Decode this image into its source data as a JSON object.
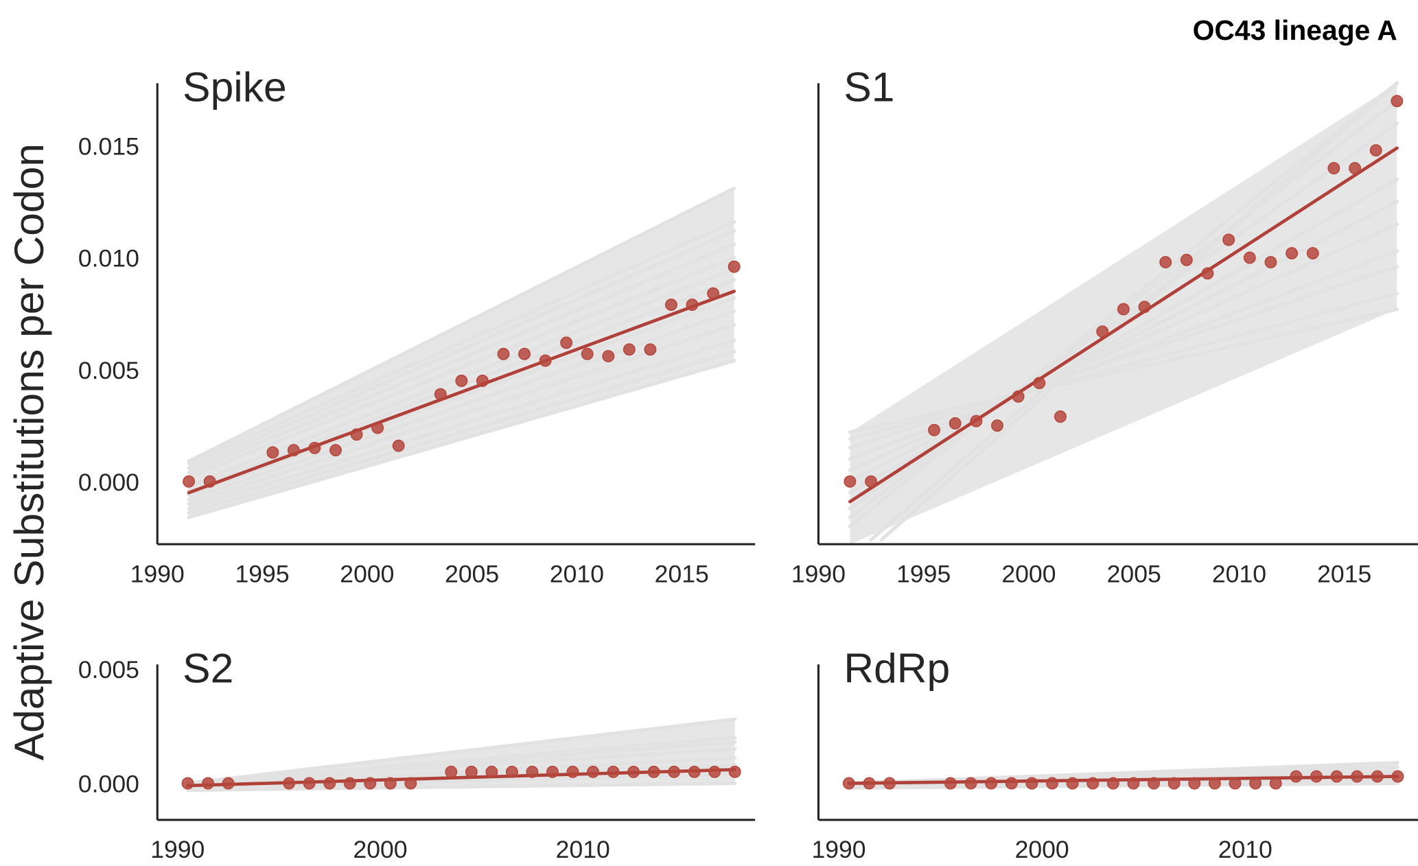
{
  "figure": {
    "suptitle": "OC43 lineage A",
    "ylabel": "Adaptive Substitutions per Codon"
  },
  "colors": {
    "point": "#b5473c",
    "point_edge": "#b5473c",
    "fit_line": "#b0413a",
    "bootstrap": "#e2e2e2",
    "axis": "#262626"
  },
  "chart_data": [
    {
      "type": "scatter",
      "title": "Spike",
      "xlabel": "",
      "ylabel": "Adaptive Substitutions per Codon",
      "xlim": [
        1990,
        2018.5
      ],
      "ylim": [
        -0.0028,
        0.0178
      ],
      "xticks": [
        1990,
        1995,
        2000,
        2005,
        2010,
        2015
      ],
      "xtick_labels": [
        "1990",
        "1995",
        "2000",
        "2005",
        "2010",
        "2015"
      ],
      "yticks": [
        0.0,
        0.005,
        0.01,
        0.015
      ],
      "ytick_labels": [
        "0.000",
        "0.005",
        "0.010",
        "0.015"
      ],
      "grid": false,
      "x": [
        1991.5,
        1992.5,
        1995.5,
        1996.5,
        1997.5,
        1998.5,
        1999.5,
        2000.5,
        2001.5,
        2003.5,
        2004.5,
        2005.5,
        2006.5,
        2007.5,
        2008.5,
        2009.5,
        2010.5,
        2011.5,
        2012.5,
        2013.5,
        2014.5,
        2015.5,
        2016.5,
        2017.5
      ],
      "y": [
        0.0,
        0.0,
        0.0013,
        0.0014,
        0.0015,
        0.0014,
        0.0021,
        0.0024,
        0.0016,
        0.0039,
        0.0045,
        0.0045,
        0.0057,
        0.0057,
        0.0054,
        0.0062,
        0.0057,
        0.0056,
        0.0059,
        0.0059,
        0.0079,
        0.0079,
        0.0084,
        0.0096
      ],
      "fit": {
        "x": [
          1991.5,
          2017.5
        ],
        "y": [
          -0.0005,
          0.0085
        ]
      },
      "bootstrap_lines": [
        {
          "x": [
            1991.5,
            2017.5
          ],
          "y": [
            0.0009,
            0.0131
          ]
        },
        {
          "x": [
            1991.5,
            2017.5
          ],
          "y": [
            0.0008,
            0.0116
          ]
        },
        {
          "x": [
            1991.5,
            2017.5
          ],
          "y": [
            0.0006,
            0.0112
          ]
        },
        {
          "x": [
            1991.5,
            2017.5
          ],
          "y": [
            0.0004,
            0.0106
          ]
        },
        {
          "x": [
            1991.5,
            2017.5
          ],
          "y": [
            0.0002,
            0.01
          ]
        },
        {
          "x": [
            1991.5,
            2017.5
          ],
          "y": [
            -0.0002,
            0.0095
          ]
        },
        {
          "x": [
            1991.5,
            2017.5
          ],
          "y": [
            -0.0004,
            0.009
          ]
        },
        {
          "x": [
            1991.5,
            2017.5
          ],
          "y": [
            -0.0006,
            0.0082
          ]
        },
        {
          "x": [
            1991.5,
            2017.5
          ],
          "y": [
            -0.0008,
            0.0076
          ]
        },
        {
          "x": [
            1991.5,
            2017.5
          ],
          "y": [
            -0.001,
            0.007
          ]
        },
        {
          "x": [
            1991.5,
            2017.5
          ],
          "y": [
            -0.0012,
            0.0063
          ]
        },
        {
          "x": [
            1991.5,
            2017.5
          ],
          "y": [
            -0.0014,
            0.0058
          ]
        },
        {
          "x": [
            1991.5,
            2017.5
          ],
          "y": [
            -0.0016,
            0.0054
          ]
        }
      ]
    },
    {
      "type": "scatter",
      "title": "S1",
      "xlabel": "",
      "ylabel": "",
      "xlim": [
        1990,
        2018.5
      ],
      "ylim": [
        -0.0028,
        0.0178
      ],
      "xticks": [
        1990,
        1995,
        2000,
        2005,
        2010,
        2015
      ],
      "xtick_labels": [
        "1990",
        "1995",
        "2000",
        "2005",
        "2010",
        "2015"
      ],
      "yticks": [],
      "ytick_labels": [],
      "grid": false,
      "x": [
        1991.5,
        1992.5,
        1995.5,
        1996.5,
        1997.5,
        1998.5,
        1999.5,
        2000.5,
        2001.5,
        2003.5,
        2004.5,
        2005.5,
        2006.5,
        2007.5,
        2008.5,
        2009.5,
        2010.5,
        2011.5,
        2012.5,
        2013.5,
        2014.5,
        2015.5,
        2016.5,
        2017.5
      ],
      "y": [
        0.0,
        0.0,
        0.0023,
        0.0026,
        0.0027,
        0.0025,
        0.0038,
        0.0044,
        0.0029,
        0.0067,
        0.0077,
        0.0078,
        0.0098,
        0.0099,
        0.0093,
        0.0108,
        0.01,
        0.0098,
        0.0102,
        0.0102,
        0.014,
        0.014,
        0.0148,
        0.017
      ],
      "fit": {
        "x": [
          1991.5,
          2017.5
        ],
        "y": [
          -0.0009,
          0.0149
        ]
      },
      "bootstrap_lines": [
        {
          "x": [
            1991.5,
            2017.5
          ],
          "y": [
            0.0022,
            0.0077
          ]
        },
        {
          "x": [
            1991.5,
            2017.5
          ],
          "y": [
            0.0019,
            0.0084
          ]
        },
        {
          "x": [
            1991.5,
            2017.5
          ],
          "y": [
            0.0015,
            0.0096
          ]
        },
        {
          "x": [
            1991.5,
            2017.5
          ],
          "y": [
            0.001,
            0.0103
          ]
        },
        {
          "x": [
            1991.5,
            2017.5
          ],
          "y": [
            0.0005,
            0.0115
          ]
        },
        {
          "x": [
            1991.5,
            2017.5
          ],
          "y": [
            0.0,
            0.0125
          ]
        },
        {
          "x": [
            1991.5,
            2017.5
          ],
          "y": [
            -0.0005,
            0.0135
          ]
        },
        {
          "x": [
            1991.5,
            2017.5
          ],
          "y": [
            -0.0009,
            0.0149
          ]
        },
        {
          "x": [
            1991.5,
            2017.5
          ],
          "y": [
            -0.0012,
            0.016
          ]
        },
        {
          "x": [
            1991.5,
            2017.5
          ],
          "y": [
            -0.0016,
            0.017
          ]
        },
        {
          "x": [
            1991.5,
            2017.5
          ],
          "y": [
            -0.002,
            0.0178
          ]
        },
        {
          "x": [
            1992.5,
            2017.5
          ],
          "y": [
            -0.0026,
            0.0178
          ]
        },
        {
          "x": [
            1993.0,
            2017.5
          ],
          "y": [
            -0.0026,
            0.0178
          ]
        }
      ]
    },
    {
      "type": "scatter",
      "title": "S2",
      "xlabel": "",
      "ylabel": "",
      "xlim": [
        1989.0,
        2018.5
      ],
      "ylim": [
        -0.0016,
        0.0052
      ],
      "xticks": [
        1990,
        2000,
        2010
      ],
      "xtick_labels": [
        "1990",
        "2000",
        "2010"
      ],
      "yticks": [
        0.0,
        0.005
      ],
      "ytick_labels": [
        "0.000",
        "0.005"
      ],
      "grid": false,
      "x": [
        1990.5,
        1991.5,
        1992.5,
        1995.5,
        1996.5,
        1997.5,
        1998.5,
        1999.5,
        2000.5,
        2001.5,
        2003.5,
        2004.5,
        2005.5,
        2006.5,
        2007.5,
        2008.5,
        2009.5,
        2010.5,
        2011.5,
        2012.5,
        2013.5,
        2014.5,
        2015.5,
        2016.5,
        2017.5
      ],
      "y": [
        0.0,
        0.0,
        0.0,
        0.0,
        0.0,
        0.0,
        0.0,
        0.0,
        0.0,
        0.0,
        0.0005,
        0.0005,
        0.0005,
        0.0005,
        0.0005,
        0.0005,
        0.0005,
        0.0005,
        0.0005,
        0.0005,
        0.0005,
        0.0005,
        0.0005,
        0.0005,
        0.0005
      ],
      "fit": {
        "x": [
          1990.5,
          2017.5
        ],
        "y": [
          -0.0001,
          0.0006
        ]
      },
      "bootstrap_lines": [
        {
          "x": [
            1990.5,
            2017.5
          ],
          "y": [
            0.0,
            0.0028
          ]
        },
        {
          "x": [
            1990.5,
            2017.5
          ],
          "y": [
            0.0,
            0.002
          ]
        },
        {
          "x": [
            1990.5,
            2017.5
          ],
          "y": [
            0.0,
            0.0018
          ]
        },
        {
          "x": [
            1990.5,
            2017.5
          ],
          "y": [
            0.0,
            0.0015
          ]
        },
        {
          "x": [
            1990.5,
            2017.5
          ],
          "y": [
            -0.0001,
            0.0011
          ]
        },
        {
          "x": [
            1990.5,
            2017.5
          ],
          "y": [
            -0.0001,
            0.0008
          ]
        },
        {
          "x": [
            1990.5,
            2017.5
          ],
          "y": [
            -0.0002,
            0.0004
          ]
        },
        {
          "x": [
            1990.5,
            2017.5
          ],
          "y": [
            -0.0003,
            0.0
          ]
        }
      ]
    },
    {
      "type": "scatter",
      "title": "RdRp",
      "xlabel": "",
      "ylabel": "",
      "xlim": [
        1989.0,
        2018.5
      ],
      "ylim": [
        -0.0016,
        0.0052
      ],
      "xticks": [
        1990,
        2000,
        2010
      ],
      "xtick_labels": [
        "1990",
        "2000",
        "2010"
      ],
      "yticks": [],
      "ytick_labels": [],
      "grid": false,
      "x": [
        1990.5,
        1991.5,
        1992.5,
        1995.5,
        1996.5,
        1997.5,
        1998.5,
        1999.5,
        2000.5,
        2001.5,
        2002.5,
        2003.5,
        2004.5,
        2005.5,
        2006.5,
        2007.5,
        2008.5,
        2009.5,
        2010.5,
        2011.5,
        2012.5,
        2013.5,
        2014.5,
        2015.5,
        2016.5,
        2017.5
      ],
      "y": [
        0.0,
        0.0,
        0.0,
        0.0,
        0.0,
        0.0,
        0.0,
        0.0,
        0.0,
        0.0,
        0.0,
        0.0,
        0.0,
        0.0,
        0.0,
        0.0,
        0.0,
        0.0,
        0.0,
        0.0,
        0.0003,
        0.0003,
        0.0003,
        0.0003,
        0.0003,
        0.0003
      ],
      "fit": {
        "x": [
          1990.5,
          2017.5
        ],
        "y": [
          0.0,
          0.0003
        ]
      },
      "bootstrap_lines": [
        {
          "x": [
            1990.5,
            2017.5
          ],
          "y": [
            0.0,
            0.0009
          ]
        },
        {
          "x": [
            1990.5,
            2017.5
          ],
          "y": [
            0.0,
            0.0007
          ]
        },
        {
          "x": [
            1990.5,
            2017.5
          ],
          "y": [
            0.0,
            0.0005
          ]
        },
        {
          "x": [
            1990.5,
            2017.5
          ],
          "y": [
            -0.0001,
            0.0002
          ]
        },
        {
          "x": [
            1990.5,
            2017.5
          ],
          "y": [
            -0.0002,
            0.0
          ]
        }
      ]
    }
  ]
}
